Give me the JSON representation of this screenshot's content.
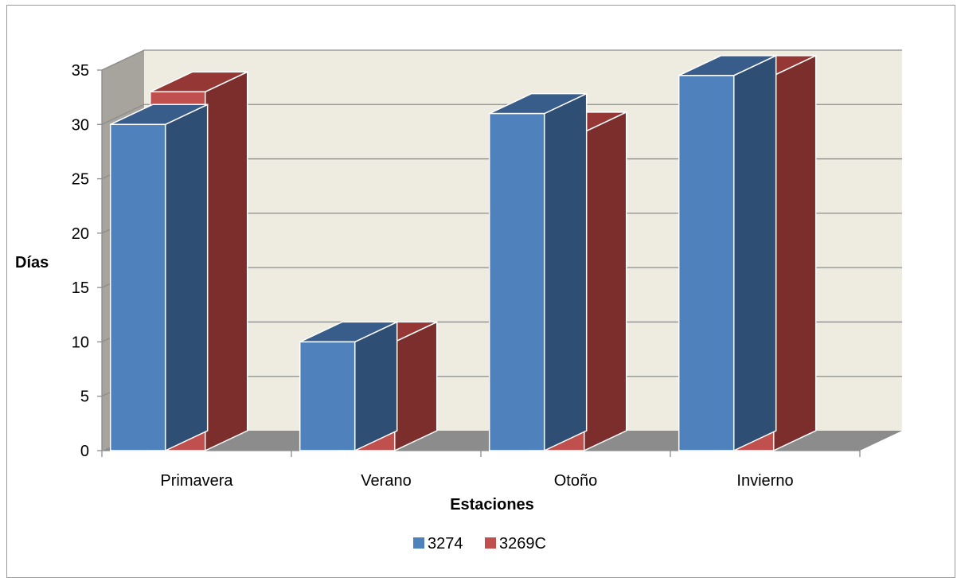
{
  "chart_data": {
    "type": "bar",
    "title": "",
    "xlabel": "Estaciones",
    "ylabel": "Días",
    "categories": [
      "Primavera",
      "Verano",
      "Otoño",
      "Invierno"
    ],
    "series": [
      {
        "name": "3274",
        "values": [
          30,
          10,
          31,
          34.5
        ]
      },
      {
        "name": "3269C",
        "values": [
          33,
          10,
          29.3,
          34.5
        ]
      }
    ],
    "ylim": [
      0,
      35
    ],
    "yticks": [
      "0",
      "5",
      "10",
      "15",
      "20",
      "25",
      "30",
      "35"
    ],
    "grid": true,
    "legend_position": "bottom",
    "colors": {
      "3274": {
        "front": "#4f81bd",
        "top": "#385d8a",
        "side": "#2f4e74"
      },
      "3269C": {
        "front": "#c0504d",
        "top": "#953735",
        "side": "#7b2e2c"
      },
      "back_wall": "#eeece1",
      "side_wall": "#a6a49c",
      "floor": "#8c8c8c"
    }
  }
}
